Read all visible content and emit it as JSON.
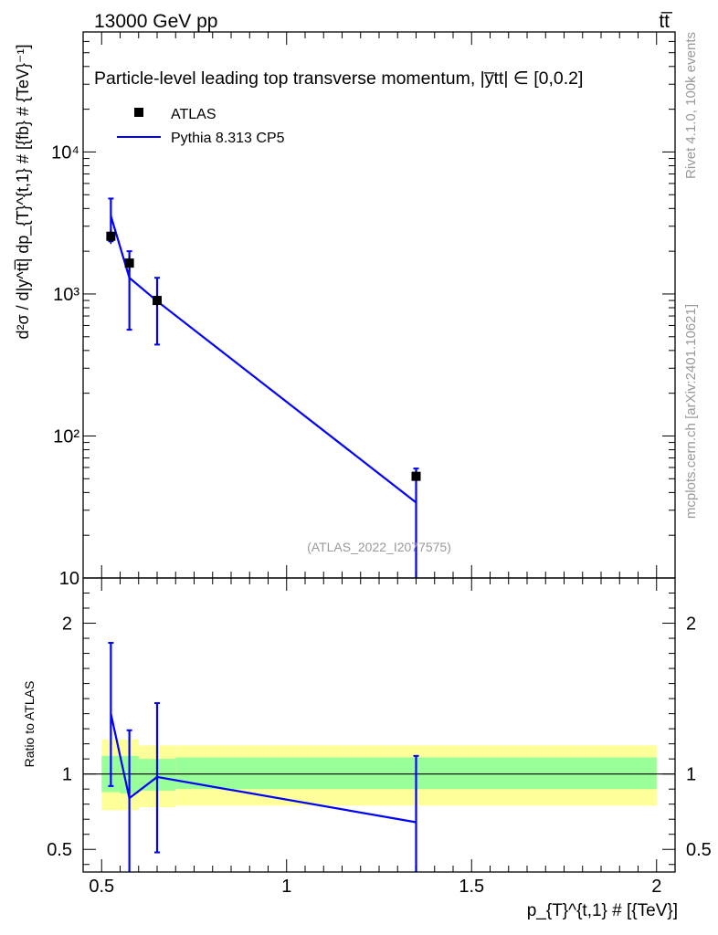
{
  "header": {
    "energy_label": "13000 GeV pp",
    "process_label": "tt̅"
  },
  "side_labels": {
    "rivet": "Rivet 4.1.0,  100k events",
    "mcplots": "mcplots.cern.ch [arXiv:2401.10621]"
  },
  "chart_data": [
    {
      "type": "line",
      "panel": "main",
      "title": "Particle-level leading top transverse momentum, |y̅tt| ∈ [0,0.2]",
      "watermark": "(ATLAS_2022_I2077575)",
      "ylabel": "d²σ / d|y^tt̅| dp_{T}^{t,1} # [{fb} # {TeV}⁻¹]",
      "yscale": "log",
      "ylim": [
        10,
        70000
      ],
      "xlim": [
        0.45,
        2.05
      ],
      "y_ticks": [
        {
          "value": 10,
          "label": "10"
        },
        {
          "value": 100,
          "label": "10²"
        },
        {
          "value": 1000,
          "label": "10³"
        },
        {
          "value": 10000,
          "label": "10⁴"
        }
      ],
      "legend": [
        {
          "name": "ATLAS",
          "marker": "square",
          "color": "#000000"
        },
        {
          "name": "Pythia 8.313 CP5",
          "marker": "line",
          "color": "#0000ff"
        }
      ],
      "series": [
        {
          "name": "ATLAS",
          "color": "#000000",
          "points": [
            {
              "x": 0.525,
              "y": 2550,
              "yerr_lo": 2250,
              "yerr_hi": 2850
            },
            {
              "x": 0.575,
              "y": 1650,
              "yerr_lo": 1450,
              "yerr_hi": 1850
            },
            {
              "x": 0.65,
              "y": 900,
              "yerr_lo": 820,
              "yerr_hi": 980
            },
            {
              "x": 1.35,
              "y": 52,
              "yerr_lo": 48,
              "yerr_hi": 57
            }
          ]
        },
        {
          "name": "Pythia 8.313 CP5",
          "color": "#0000ff",
          "points": [
            {
              "x": 0.525,
              "y": 3550,
              "yerr_lo": 2350,
              "yerr_hi": 4700
            },
            {
              "x": 0.575,
              "y": 1300,
              "yerr_lo": 560,
              "yerr_hi": 2000
            },
            {
              "x": 0.65,
              "y": 890,
              "yerr_lo": 440,
              "yerr_hi": 1300
            },
            {
              "x": 1.35,
              "y": 34,
              "yerr_lo": 10,
              "yerr_hi": 59
            }
          ]
        }
      ]
    },
    {
      "type": "line",
      "panel": "ratio",
      "ylabel": "Ratio to ATLAS",
      "xlabel": "p_{T}^{t,1} # [{TeV}]",
      "ylim": [
        0.35,
        2.3
      ],
      "xlim": [
        0.45,
        2.05
      ],
      "x_ticks": [
        {
          "value": 0.5,
          "label": "0.5"
        },
        {
          "value": 1,
          "label": "1"
        },
        {
          "value": 1.5,
          "label": "1.5"
        },
        {
          "value": 2,
          "label": "2"
        }
      ],
      "y_ticks": [
        {
          "value": 0.5,
          "label": "0.5"
        },
        {
          "value": 1,
          "label": "1"
        },
        {
          "value": 2,
          "label": "2"
        }
      ],
      "bands": [
        {
          "name": "ATLAS total uncertainty",
          "color": "#ffff99",
          "segments": [
            {
              "x0": 0.5,
              "x1": 0.55,
              "lo": 0.76,
              "hi": 1.23
            },
            {
              "x0": 0.55,
              "x1": 0.6,
              "lo": 0.76,
              "hi": 1.23
            },
            {
              "x0": 0.6,
              "x1": 0.7,
              "lo": 0.78,
              "hi": 1.19
            },
            {
              "x0": 0.7,
              "x1": 2.0,
              "lo": 0.79,
              "hi": 1.19
            }
          ]
        },
        {
          "name": "ATLAS statistical uncertainty",
          "color": "#99ff99",
          "segments": [
            {
              "x0": 0.5,
              "x1": 0.55,
              "lo": 0.88,
              "hi": 1.12
            },
            {
              "x0": 0.55,
              "x1": 0.6,
              "lo": 0.87,
              "hi": 1.12
            },
            {
              "x0": 0.6,
              "x1": 0.7,
              "lo": 0.89,
              "hi": 1.1
            },
            {
              "x0": 0.7,
              "x1": 2.0,
              "lo": 0.9,
              "hi": 1.11
            }
          ]
        }
      ],
      "reference_line": 1,
      "series": [
        {
          "name": "Pythia 8.313 CP5 / ATLAS",
          "color": "#0000ff",
          "points": [
            {
              "x": 0.525,
              "y": 1.4,
              "yerr_lo": 0.92,
              "yerr_hi": 1.87
            },
            {
              "x": 0.575,
              "y": 0.84,
              "yerr_lo": 0.35,
              "yerr_hi": 1.29
            },
            {
              "x": 0.65,
              "y": 0.98,
              "yerr_lo": 0.48,
              "yerr_hi": 1.47
            },
            {
              "x": 1.35,
              "y": 0.68,
              "yerr_lo": 0.35,
              "yerr_hi": 1.12
            }
          ]
        }
      ]
    }
  ]
}
